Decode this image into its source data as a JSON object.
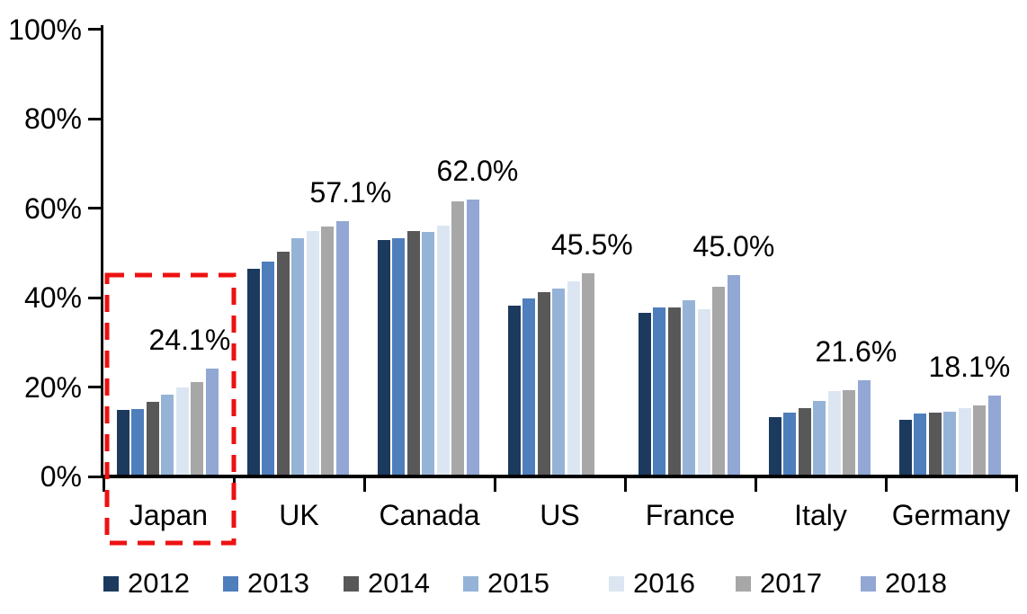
{
  "chart_data": {
    "type": "bar",
    "title": "",
    "xlabel": "",
    "ylabel": "",
    "categories": [
      "Japan",
      "UK",
      "Canada",
      "US",
      "France",
      "Italy",
      "Germany"
    ],
    "series": [
      {
        "name": "2012",
        "color": "#1C3A5E",
        "values": [
          14.8,
          46.5,
          52.8,
          38.2,
          36.5,
          13.3,
          12.7
        ]
      },
      {
        "name": "2013",
        "color": "#4E7EBB",
        "values": [
          15.0,
          48.0,
          53.2,
          39.8,
          37.8,
          14.3,
          14.0
        ]
      },
      {
        "name": "2014",
        "color": "#585858",
        "values": [
          16.7,
          50.2,
          54.8,
          41.2,
          37.8,
          15.3,
          14.3
        ]
      },
      {
        "name": "2015",
        "color": "#95B3D7",
        "values": [
          18.2,
          53.2,
          54.6,
          42.0,
          39.4,
          16.9,
          14.5
        ]
      },
      {
        "name": "2016",
        "color": "#DCE6F2",
        "values": [
          20.0,
          54.8,
          56.0,
          43.6,
          37.3,
          19.1,
          15.2
        ]
      },
      {
        "name": "2017",
        "color": "#A7A7A7",
        "values": [
          21.2,
          55.8,
          61.6,
          45.5,
          42.4,
          19.3,
          15.8
        ]
      },
      {
        "name": "2018",
        "color": "#92A7D3",
        "values": [
          24.1,
          57.1,
          62.0,
          null,
          45.0,
          21.6,
          18.1
        ]
      }
    ],
    "data_labels": [
      "24.1%",
      "57.1%",
      "62.0%",
      "45.5%",
      "45.0%",
      "21.6%",
      "18.1%"
    ],
    "y_ticks": [
      "0%",
      "20%",
      "40%",
      "60%",
      "80%",
      "100%"
    ],
    "ylim": [
      0,
      100
    ],
    "y_tick_step": 20,
    "grid": false,
    "legend_position": "bottom",
    "legend": [
      "2012",
      "2013",
      "2014",
      "2015",
      "2016",
      "2017",
      "2018"
    ],
    "highlight": {
      "category": "Japan",
      "shape": "red-dashed-rectangle",
      "color": "#EE1111"
    }
  }
}
